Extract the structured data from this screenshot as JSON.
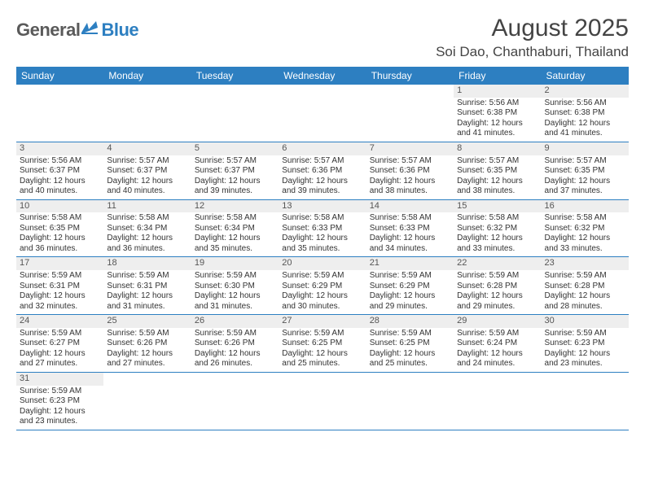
{
  "brand": {
    "part1": "General",
    "part2": "Blue"
  },
  "title": "August 2025",
  "location": "Soi Dao, Chanthaburi, Thailand",
  "colors": {
    "header_bg": "#2d7fc1",
    "header_text": "#ffffff",
    "daynum_bg": "#eeeeee",
    "row_border": "#2d7fc1",
    "brand_gray": "#5a5a5a",
    "brand_blue": "#2d7fc1"
  },
  "day_headers": [
    "Sunday",
    "Monday",
    "Tuesday",
    "Wednesday",
    "Thursday",
    "Friday",
    "Saturday"
  ],
  "weeks": [
    [
      {
        "n": "",
        "sr": "",
        "ss": "",
        "d1": "",
        "d2": ""
      },
      {
        "n": "",
        "sr": "",
        "ss": "",
        "d1": "",
        "d2": ""
      },
      {
        "n": "",
        "sr": "",
        "ss": "",
        "d1": "",
        "d2": ""
      },
      {
        "n": "",
        "sr": "",
        "ss": "",
        "d1": "",
        "d2": ""
      },
      {
        "n": "",
        "sr": "",
        "ss": "",
        "d1": "",
        "d2": ""
      },
      {
        "n": "1",
        "sr": "Sunrise: 5:56 AM",
        "ss": "Sunset: 6:38 PM",
        "d1": "Daylight: 12 hours",
        "d2": "and 41 minutes."
      },
      {
        "n": "2",
        "sr": "Sunrise: 5:56 AM",
        "ss": "Sunset: 6:38 PM",
        "d1": "Daylight: 12 hours",
        "d2": "and 41 minutes."
      }
    ],
    [
      {
        "n": "3",
        "sr": "Sunrise: 5:56 AM",
        "ss": "Sunset: 6:37 PM",
        "d1": "Daylight: 12 hours",
        "d2": "and 40 minutes."
      },
      {
        "n": "4",
        "sr": "Sunrise: 5:57 AM",
        "ss": "Sunset: 6:37 PM",
        "d1": "Daylight: 12 hours",
        "d2": "and 40 minutes."
      },
      {
        "n": "5",
        "sr": "Sunrise: 5:57 AM",
        "ss": "Sunset: 6:37 PM",
        "d1": "Daylight: 12 hours",
        "d2": "and 39 minutes."
      },
      {
        "n": "6",
        "sr": "Sunrise: 5:57 AM",
        "ss": "Sunset: 6:36 PM",
        "d1": "Daylight: 12 hours",
        "d2": "and 39 minutes."
      },
      {
        "n": "7",
        "sr": "Sunrise: 5:57 AM",
        "ss": "Sunset: 6:36 PM",
        "d1": "Daylight: 12 hours",
        "d2": "and 38 minutes."
      },
      {
        "n": "8",
        "sr": "Sunrise: 5:57 AM",
        "ss": "Sunset: 6:35 PM",
        "d1": "Daylight: 12 hours",
        "d2": "and 38 minutes."
      },
      {
        "n": "9",
        "sr": "Sunrise: 5:57 AM",
        "ss": "Sunset: 6:35 PM",
        "d1": "Daylight: 12 hours",
        "d2": "and 37 minutes."
      }
    ],
    [
      {
        "n": "10",
        "sr": "Sunrise: 5:58 AM",
        "ss": "Sunset: 6:35 PM",
        "d1": "Daylight: 12 hours",
        "d2": "and 36 minutes."
      },
      {
        "n": "11",
        "sr": "Sunrise: 5:58 AM",
        "ss": "Sunset: 6:34 PM",
        "d1": "Daylight: 12 hours",
        "d2": "and 36 minutes."
      },
      {
        "n": "12",
        "sr": "Sunrise: 5:58 AM",
        "ss": "Sunset: 6:34 PM",
        "d1": "Daylight: 12 hours",
        "d2": "and 35 minutes."
      },
      {
        "n": "13",
        "sr": "Sunrise: 5:58 AM",
        "ss": "Sunset: 6:33 PM",
        "d1": "Daylight: 12 hours",
        "d2": "and 35 minutes."
      },
      {
        "n": "14",
        "sr": "Sunrise: 5:58 AM",
        "ss": "Sunset: 6:33 PM",
        "d1": "Daylight: 12 hours",
        "d2": "and 34 minutes."
      },
      {
        "n": "15",
        "sr": "Sunrise: 5:58 AM",
        "ss": "Sunset: 6:32 PM",
        "d1": "Daylight: 12 hours",
        "d2": "and 33 minutes."
      },
      {
        "n": "16",
        "sr": "Sunrise: 5:58 AM",
        "ss": "Sunset: 6:32 PM",
        "d1": "Daylight: 12 hours",
        "d2": "and 33 minutes."
      }
    ],
    [
      {
        "n": "17",
        "sr": "Sunrise: 5:59 AM",
        "ss": "Sunset: 6:31 PM",
        "d1": "Daylight: 12 hours",
        "d2": "and 32 minutes."
      },
      {
        "n": "18",
        "sr": "Sunrise: 5:59 AM",
        "ss": "Sunset: 6:31 PM",
        "d1": "Daylight: 12 hours",
        "d2": "and 31 minutes."
      },
      {
        "n": "19",
        "sr": "Sunrise: 5:59 AM",
        "ss": "Sunset: 6:30 PM",
        "d1": "Daylight: 12 hours",
        "d2": "and 31 minutes."
      },
      {
        "n": "20",
        "sr": "Sunrise: 5:59 AM",
        "ss": "Sunset: 6:29 PM",
        "d1": "Daylight: 12 hours",
        "d2": "and 30 minutes."
      },
      {
        "n": "21",
        "sr": "Sunrise: 5:59 AM",
        "ss": "Sunset: 6:29 PM",
        "d1": "Daylight: 12 hours",
        "d2": "and 29 minutes."
      },
      {
        "n": "22",
        "sr": "Sunrise: 5:59 AM",
        "ss": "Sunset: 6:28 PM",
        "d1": "Daylight: 12 hours",
        "d2": "and 29 minutes."
      },
      {
        "n": "23",
        "sr": "Sunrise: 5:59 AM",
        "ss": "Sunset: 6:28 PM",
        "d1": "Daylight: 12 hours",
        "d2": "and 28 minutes."
      }
    ],
    [
      {
        "n": "24",
        "sr": "Sunrise: 5:59 AM",
        "ss": "Sunset: 6:27 PM",
        "d1": "Daylight: 12 hours",
        "d2": "and 27 minutes."
      },
      {
        "n": "25",
        "sr": "Sunrise: 5:59 AM",
        "ss": "Sunset: 6:26 PM",
        "d1": "Daylight: 12 hours",
        "d2": "and 27 minutes."
      },
      {
        "n": "26",
        "sr": "Sunrise: 5:59 AM",
        "ss": "Sunset: 6:26 PM",
        "d1": "Daylight: 12 hours",
        "d2": "and 26 minutes."
      },
      {
        "n": "27",
        "sr": "Sunrise: 5:59 AM",
        "ss": "Sunset: 6:25 PM",
        "d1": "Daylight: 12 hours",
        "d2": "and 25 minutes."
      },
      {
        "n": "28",
        "sr": "Sunrise: 5:59 AM",
        "ss": "Sunset: 6:25 PM",
        "d1": "Daylight: 12 hours",
        "d2": "and 25 minutes."
      },
      {
        "n": "29",
        "sr": "Sunrise: 5:59 AM",
        "ss": "Sunset: 6:24 PM",
        "d1": "Daylight: 12 hours",
        "d2": "and 24 minutes."
      },
      {
        "n": "30",
        "sr": "Sunrise: 5:59 AM",
        "ss": "Sunset: 6:23 PM",
        "d1": "Daylight: 12 hours",
        "d2": "and 23 minutes."
      }
    ],
    [
      {
        "n": "31",
        "sr": "Sunrise: 5:59 AM",
        "ss": "Sunset: 6:23 PM",
        "d1": "Daylight: 12 hours",
        "d2": "and 23 minutes."
      },
      {
        "n": "",
        "sr": "",
        "ss": "",
        "d1": "",
        "d2": ""
      },
      {
        "n": "",
        "sr": "",
        "ss": "",
        "d1": "",
        "d2": ""
      },
      {
        "n": "",
        "sr": "",
        "ss": "",
        "d1": "",
        "d2": ""
      },
      {
        "n": "",
        "sr": "",
        "ss": "",
        "d1": "",
        "d2": ""
      },
      {
        "n": "",
        "sr": "",
        "ss": "",
        "d1": "",
        "d2": ""
      },
      {
        "n": "",
        "sr": "",
        "ss": "",
        "d1": "",
        "d2": ""
      }
    ]
  ]
}
